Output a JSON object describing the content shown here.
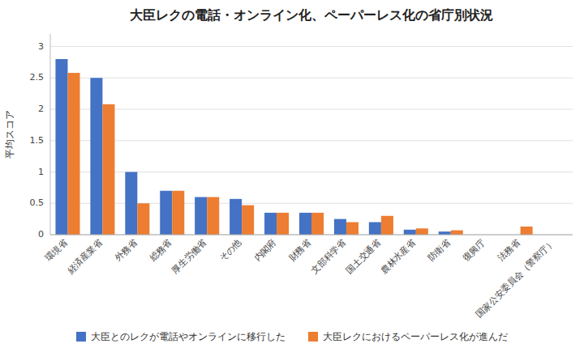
{
  "chart_data": {
    "type": "bar",
    "title": "大臣レクの電話・オンライン化、ペーパーレス化の省庁別状況",
    "ylabel": "平均スコア",
    "categories": [
      "環境省",
      "経済産業省",
      "外務省",
      "総務省",
      "厚生労働省",
      "その他",
      "内閣府",
      "財務省",
      "文部科学省",
      "国土交通省",
      "農林水産省",
      "防衛省",
      "復興庁",
      "法務省",
      "国家公安委員会（警察庁）"
    ],
    "series": [
      {
        "name": "大臣とのレクが電話やオンラインに移行した",
        "color": "#4472C4",
        "values": [
          2.8,
          2.5,
          1.0,
          0.7,
          0.6,
          0.57,
          0.35,
          0.35,
          0.25,
          0.2,
          0.08,
          0.05,
          0.0,
          0.0,
          0.0
        ]
      },
      {
        "name": "大臣レクにおけるペーパーレス化が進んだ",
        "color": "#ED7D31",
        "values": [
          2.58,
          2.08,
          0.5,
          0.7,
          0.6,
          0.47,
          0.35,
          0.35,
          0.2,
          0.3,
          0.1,
          0.07,
          0.0,
          0.13,
          0.0
        ]
      }
    ],
    "ylim": [
      0,
      3.2
    ],
    "yticks": [
      0,
      0.5,
      1,
      1.5,
      2,
      2.5,
      3
    ],
    "grid": true,
    "legend": "bottom"
  }
}
